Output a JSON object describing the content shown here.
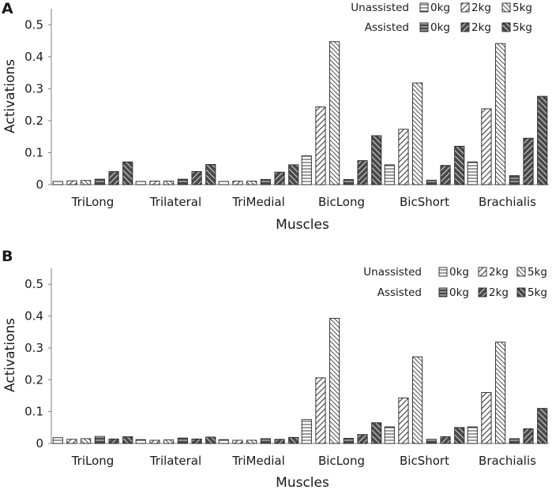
{
  "chart_data": [
    {
      "panel": "A",
      "type": "bar",
      "ylabel": "Activations",
      "xlabel": "Muscles",
      "ylim": [
        0,
        0.55
      ],
      "yticks": [
        0,
        0.1,
        0.2,
        0.3,
        0.4,
        0.5
      ],
      "ytick_labels": [
        "0",
        "0.1",
        "0.2",
        "0.3",
        "0.4",
        "0.5"
      ],
      "categories": [
        "TriLong",
        "Trilateral",
        "TriMedial",
        "BicLong",
        "BicShort",
        "Brachialis"
      ],
      "legend": {
        "row_labels": [
          "Unassisted",
          "Assisted"
        ],
        "placement": "top-right"
      },
      "series": [
        {
          "name": "0kg",
          "group": "Unassisted",
          "values": [
            0.01,
            0.01,
            0.01,
            0.09,
            0.062,
            0.071
          ]
        },
        {
          "name": "2kg",
          "group": "Unassisted",
          "values": [
            0.012,
            0.011,
            0.011,
            0.243,
            0.173,
            0.237
          ]
        },
        {
          "name": "5kg",
          "group": "Unassisted",
          "values": [
            0.013,
            0.011,
            0.011,
            0.447,
            0.318,
            0.441
          ]
        },
        {
          "name": "0kg",
          "group": "Assisted",
          "values": [
            0.017,
            0.017,
            0.016,
            0.016,
            0.014,
            0.028
          ]
        },
        {
          "name": "2kg",
          "group": "Assisted",
          "values": [
            0.041,
            0.041,
            0.039,
            0.075,
            0.06,
            0.145
          ]
        },
        {
          "name": "5kg",
          "group": "Assisted",
          "values": [
            0.071,
            0.063,
            0.062,
            0.153,
            0.12,
            0.276
          ]
        }
      ]
    },
    {
      "panel": "B",
      "type": "bar",
      "ylabel": "Activations",
      "xlabel": "Muscles",
      "ylim": [
        0,
        0.55
      ],
      "yticks": [
        0,
        0.1,
        0.2,
        0.3,
        0.4,
        0.5
      ],
      "ytick_labels": [
        "0",
        "0.1",
        "0.2",
        "0.3",
        "0.4",
        "0.5"
      ],
      "categories": [
        "TriLong",
        "Trilateral",
        "TriMedial",
        "BicLong",
        "BicShort",
        "Brachialis"
      ],
      "legend": {
        "row_labels": [
          "Unassisted",
          "Assisted"
        ],
        "placement": "top-right"
      },
      "series": [
        {
          "name": "0kg",
          "group": "Unassisted",
          "values": [
            0.018,
            0.012,
            0.012,
            0.075,
            0.052,
            0.052
          ]
        },
        {
          "name": "2kg",
          "group": "Unassisted",
          "values": [
            0.013,
            0.01,
            0.01,
            0.206,
            0.143,
            0.16
          ]
        },
        {
          "name": "5kg",
          "group": "Unassisted",
          "values": [
            0.015,
            0.011,
            0.01,
            0.393,
            0.272,
            0.318
          ]
        },
        {
          "name": "0kg",
          "group": "Assisted",
          "values": [
            0.022,
            0.017,
            0.015,
            0.016,
            0.013,
            0.015
          ]
        },
        {
          "name": "2kg",
          "group": "Assisted",
          "values": [
            0.014,
            0.014,
            0.013,
            0.028,
            0.021,
            0.046
          ]
        },
        {
          "name": "5kg",
          "group": "Assisted",
          "values": [
            0.021,
            0.02,
            0.019,
            0.065,
            0.05,
            0.11
          ]
        }
      ]
    }
  ],
  "styles": {
    "unassisted_fill": "#ffffff",
    "assisted_fill": "#4a4a4a",
    "unassisted_line": "#3a3a3a",
    "assisted_line": "#ffffff",
    "axis_color": "#808080",
    "outline_color": "#222222"
  }
}
